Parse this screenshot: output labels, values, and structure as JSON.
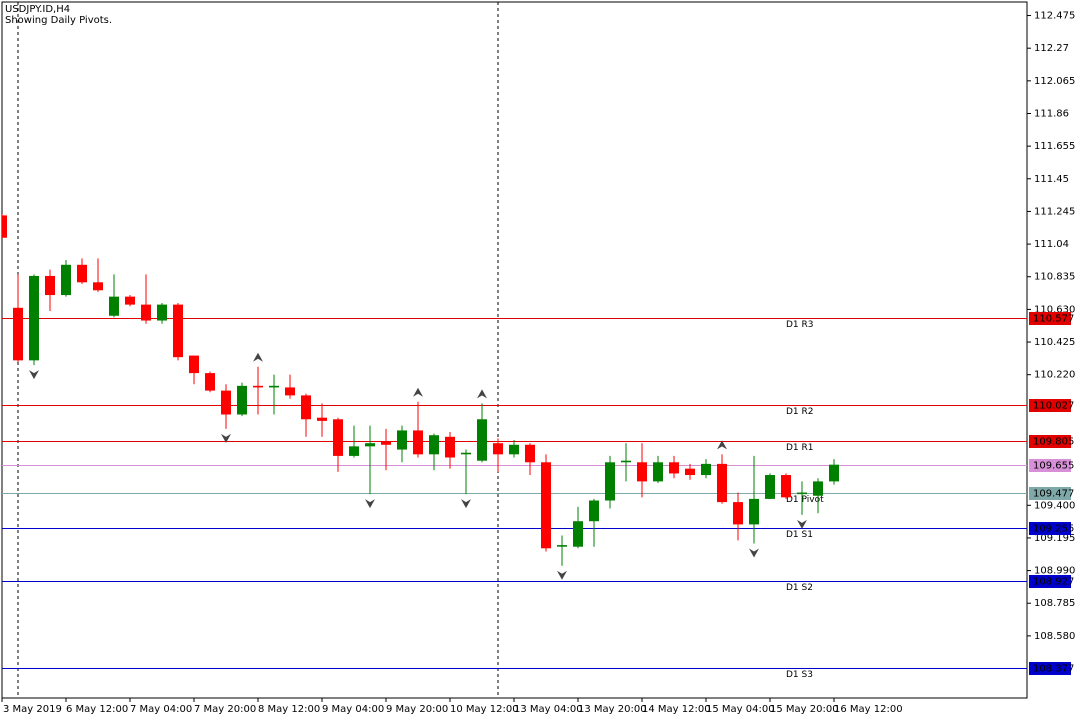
{
  "chart_data": {
    "type": "candlestick",
    "title": "USDJPY.ID,H4",
    "subtitle": "Showing Daily Pivots.",
    "categories": [
      "3 May 2019",
      null,
      null,
      null,
      "6 May 12:00",
      null,
      null,
      null,
      "7 May 04:00",
      null,
      null,
      null,
      "7 May 20:00",
      null,
      null,
      null,
      "8 May 12:00",
      null,
      null,
      null,
      "9 May 04:00",
      null,
      null,
      null,
      "9 May 20:00",
      null,
      null,
      null,
      "10 May 12:00",
      null,
      null,
      null,
      "13 May 04:00",
      null,
      null,
      null,
      "13 May 20:00",
      null,
      null,
      null,
      "14 May 12:00",
      null,
      null,
      null,
      "15 May 04:00",
      null,
      null,
      null,
      "15 May 20:00",
      null,
      null,
      null,
      "16 May 12:00"
    ],
    "open": [
      111.22,
      110.64,
      110.31,
      110.84,
      110.72,
      110.91,
      110.8,
      110.59,
      110.71,
      110.66,
      110.56,
      110.66,
      110.34,
      110.23,
      110.12,
      109.97,
      110.15,
      110.14,
      110.14,
      110.09,
      109.95,
      109.94,
      109.71,
      109.77,
      109.8,
      109.75,
      109.87,
      109.72,
      109.83,
      109.72,
      109.68,
      109.79,
      109.72,
      109.78,
      109.67,
      109.14,
      109.14,
      109.3,
      109.43,
      109.67,
      109.67,
      109.55,
      109.67,
      109.63,
      109.59,
      109.66,
      109.42,
      109.28,
      109.44,
      109.59,
      109.47,
      109.46,
      109.55
    ],
    "high": [
      111.23,
      110.85,
      110.85,
      110.88,
      110.94,
      110.95,
      110.95,
      110.85,
      110.72,
      110.85,
      110.67,
      110.67,
      110.34,
      110.24,
      110.16,
      110.17,
      110.27,
      110.22,
      110.22,
      110.1,
      110.04,
      109.95,
      109.9,
      109.9,
      109.88,
      109.9,
      110.05,
      109.85,
      109.86,
      109.75,
      110.04,
      109.82,
      109.81,
      109.79,
      109.72,
      109.21,
      109.39,
      109.44,
      109.71,
      109.79,
      109.79,
      109.71,
      109.71,
      109.66,
      109.69,
      109.72,
      109.48,
      109.71,
      109.6,
      109.6,
      109.55,
      109.57,
      109.69
    ],
    "low": [
      111.08,
      110.3,
      110.28,
      110.62,
      110.71,
      110.79,
      110.74,
      110.58,
      110.65,
      110.54,
      110.54,
      110.31,
      110.16,
      110.11,
      109.88,
      109.96,
      109.97,
      109.97,
      110.07,
      109.83,
      109.83,
      109.61,
      109.7,
      109.47,
      109.62,
      109.67,
      109.7,
      109.62,
      109.63,
      109.47,
      109.67,
      109.61,
      109.7,
      109.59,
      109.11,
      109.02,
      109.13,
      109.14,
      109.38,
      109.55,
      109.45,
      109.54,
      109.57,
      109.56,
      109.57,
      109.41,
      109.18,
      109.16,
      109.44,
      109.44,
      109.34,
      109.35,
      109.53
    ],
    "close": [
      111.08,
      110.31,
      110.84,
      110.72,
      110.91,
      110.8,
      110.75,
      110.71,
      110.66,
      110.56,
      110.66,
      110.33,
      110.23,
      110.12,
      109.97,
      110.15,
      110.14,
      110.15,
      110.09,
      109.94,
      109.93,
      109.71,
      109.77,
      109.79,
      109.78,
      109.87,
      109.72,
      109.84,
      109.7,
      109.73,
      109.94,
      109.72,
      109.78,
      109.67,
      109.13,
      109.15,
      109.3,
      109.43,
      109.67,
      109.68,
      109.55,
      109.67,
      109.6,
      109.59,
      109.66,
      109.42,
      109.28,
      109.44,
      109.59,
      109.45,
      109.48,
      109.55,
      109.655
    ],
    "up_color": "#008000",
    "down_color": "#ff0000",
    "bid_color": "#d78fd7",
    "levels": [
      {
        "name": "D1 R3",
        "value": 110.577,
        "color": "#e00000"
      },
      {
        "name": "D1 R2",
        "value": 110.027,
        "color": "#e00000"
      },
      {
        "name": "D1 R1",
        "value": 109.805,
        "color": "#e00000"
      },
      {
        "name": "D1 Pivot",
        "value": 109.477,
        "color": "#7fa8a8"
      },
      {
        "name": "D1 S1",
        "value": 109.255,
        "color": "#0000cc"
      },
      {
        "name": "D1 S2",
        "value": 108.927,
        "color": "#0000cc"
      },
      {
        "name": "D1 S3",
        "value": 108.377,
        "color": "#0000cc"
      }
    ],
    "ylim": [
      108.19,
      112.56
    ],
    "yticks": [
      112.475,
      112.27,
      112.065,
      111.86,
      111.655,
      111.45,
      111.245,
      111.04,
      110.835,
      {
        "value": 110.63,
        "label": "110.630"
      },
      110.425,
      {
        "value": 110.22,
        "label": "110.220"
      },
      {
        "value": 109.4,
        "label": "109.400"
      },
      109.195,
      {
        "value": 108.99,
        "label": "108.990"
      },
      108.785,
      {
        "value": 108.58,
        "label": "108.580"
      }
    ]
  }
}
